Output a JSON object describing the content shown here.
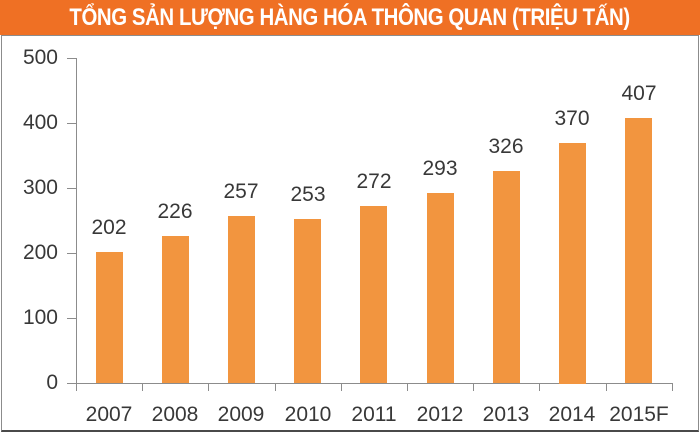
{
  "header": {
    "title": "TỔNG SẢN LƯỢNG HÀNG HÓA THÔNG QUAN (TRIỆU TẤN)"
  },
  "colors": {
    "banner_bg": "#EF7024",
    "banner_text": "#FFFFFF",
    "bar": "#F2953F",
    "axis": "#8C8C8C",
    "label_text": "#383838",
    "panel_border": "#808080"
  },
  "chart_data": {
    "type": "bar",
    "title": "TỔNG SẢN LƯỢNG HÀNG HÓA THÔNG QUAN (TRIỆU TẤN)",
    "categories": [
      "2007",
      "2008",
      "2009",
      "2010",
      "2011",
      "2012",
      "2013",
      "2014",
      "2015F"
    ],
    "values": [
      202,
      226,
      257,
      253,
      272,
      293,
      326,
      370,
      407
    ],
    "xlabel": "",
    "ylabel": "",
    "ylim": [
      0,
      500
    ],
    "yticks": [
      0,
      100,
      200,
      300,
      400,
      500
    ],
    "grid": false,
    "legend": false,
    "data_labels": true,
    "legend_position": "none"
  }
}
